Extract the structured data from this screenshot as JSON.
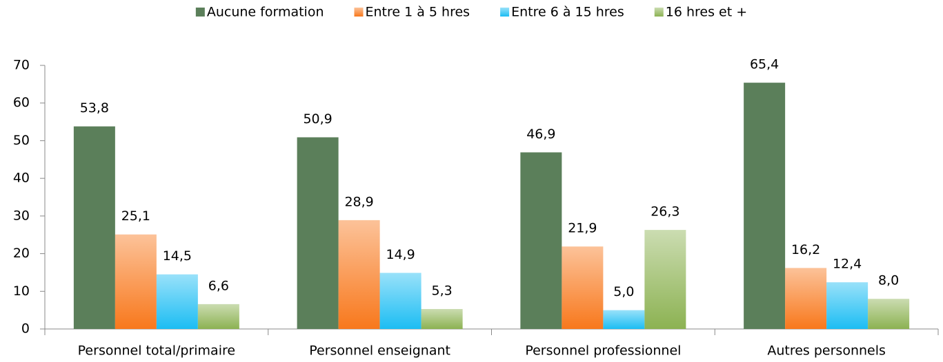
{
  "chart_data": {
    "type": "bar",
    "categories": [
      "Personnel total/primaire",
      "Personnel enseignant",
      "Personnel professionnel",
      "Autres personnels"
    ],
    "series": [
      {
        "name": "Aucune formation",
        "color": "#5b7f5a",
        "gradient": false,
        "values": [
          53.8,
          50.9,
          46.9,
          65.4
        ],
        "value_labels": [
          "53,8",
          "50,9",
          "46,9",
          "65,4"
        ]
      },
      {
        "name": "Entre 1 à 5 hres",
        "color": "#f8781c",
        "gradient": true,
        "values": [
          25.1,
          28.9,
          21.9,
          16.2
        ],
        "value_labels": [
          "25,1",
          "28,9",
          "21,9",
          "16,2"
        ]
      },
      {
        "name": "Entre 6 à 15 hres",
        "color": "#1cbdf3",
        "gradient": true,
        "values": [
          14.5,
          14.9,
          5.0,
          12.4
        ],
        "value_labels": [
          "14,5",
          "14,9",
          "5,0",
          "12,4"
        ]
      },
      {
        "name": "16 hres et +",
        "color": "#8cb252",
        "gradient": true,
        "values": [
          6.6,
          5.3,
          26.3,
          8.0
        ],
        "value_labels": [
          "6,6",
          "5,3",
          "26,3",
          "8,0"
        ]
      }
    ],
    "ylim": [
      0,
      70
    ],
    "yticks": [
      0,
      10,
      20,
      30,
      40,
      50,
      60,
      70
    ],
    "grid": false,
    "legend": "top"
  }
}
